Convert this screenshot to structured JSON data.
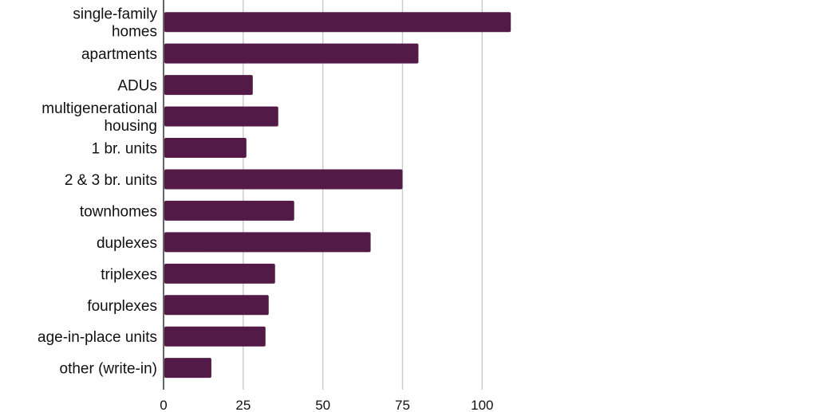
{
  "chart_data": {
    "type": "bar",
    "orientation": "horizontal",
    "categories": [
      [
        "single-family",
        "homes"
      ],
      [
        "apartments"
      ],
      [
        "ADUs"
      ],
      [
        "multigenerational",
        "housing"
      ],
      [
        "1 br. units"
      ],
      [
        "2 & 3 br. units"
      ],
      [
        "townhomes"
      ],
      [
        "duplexes"
      ],
      [
        "triplexes"
      ],
      [
        "fourplexes"
      ],
      [
        "age-in-place units"
      ],
      [
        "other (write-in)"
      ]
    ],
    "values": [
      109,
      80,
      28,
      36,
      26,
      75,
      41,
      65,
      35,
      33,
      32,
      15
    ],
    "title": "",
    "xlabel": "",
    "ylabel": "",
    "xlim": [
      0,
      110
    ],
    "xticks": [
      0,
      25,
      50,
      75,
      100
    ],
    "grid": true,
    "bar_color": "#541a47",
    "grid_color": "#cccccc"
  }
}
